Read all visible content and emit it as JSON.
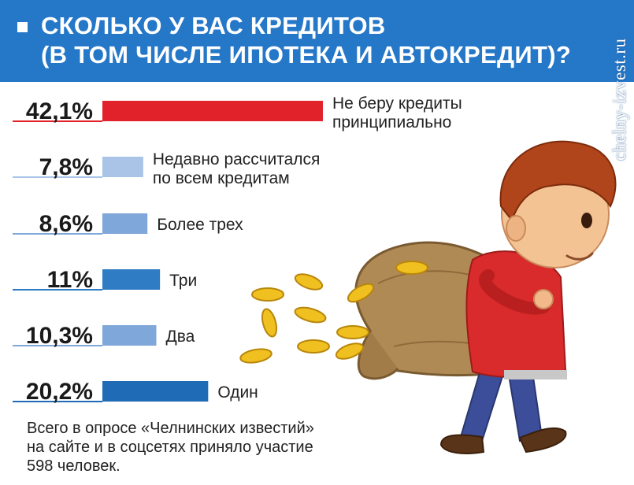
{
  "header": {
    "title_line1": "СКОЛЬКО У ВАС КРЕДИТОВ",
    "title_line2": "(В ТОМ ЧИСЛЕ ИПОТЕКА И АВТОКРЕДИТ)?"
  },
  "watermark": "chelny-izvest.ru",
  "colors": {
    "header_blue": "#2577c8",
    "highlight_red": "#e2222a"
  },
  "chart_data": {
    "type": "bar",
    "orientation": "horizontal",
    "categories": [
      "Не беру кредиты принципиально",
      "Недавно рассчитался по всем кредитам",
      "Более трех",
      "Три",
      "Два",
      "Один"
    ],
    "label_lines": [
      [
        "Не беру кредиты",
        "принципиально"
      ],
      [
        "Недавно рассчитался",
        "по всем кредитам"
      ],
      [
        "Более трех"
      ],
      [
        "Три"
      ],
      [
        "Два"
      ],
      [
        "Один"
      ]
    ],
    "values": [
      42.1,
      7.8,
      8.6,
      11,
      10.3,
      20.2
    ],
    "value_labels": [
      "42,1%",
      "7,8%",
      "8,6%",
      "11%",
      "10,3%",
      "20,2%"
    ],
    "colors": [
      "#e2222a",
      "#a9c4e6",
      "#7fa7d9",
      "#2f7cc4",
      "#7fa7d9",
      "#1f6bb6"
    ],
    "unit": "%"
  },
  "footnote": {
    "line1": "Всего в опросе «Челнинских известий»",
    "line2": "на сайте и в соцсетях приняло участие",
    "line3": "598 человек."
  }
}
